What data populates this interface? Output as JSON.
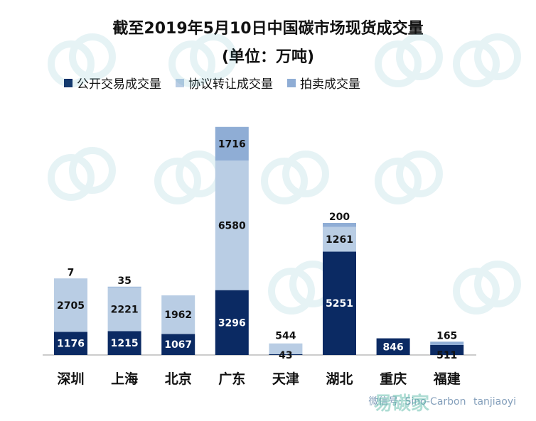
{
  "chart_data": {
    "type": "bar",
    "stacked": true,
    "title": "截至2019年5月10日中国碳市场现货成交量",
    "subtitle": "(单位：万吨)",
    "categories": [
      "深圳",
      "上海",
      "北京",
      "广东",
      "天津",
      "湖北",
      "重庆",
      "福建"
    ],
    "series": [
      {
        "name": "公开交易成交量",
        "color": "#0b2a63",
        "values": [
          1176,
          1215,
          1067,
          3296,
          43,
          5251,
          846,
          511
        ]
      },
      {
        "name": "协议转让成交量",
        "color": "#b9cde4",
        "values": [
          2705,
          2221,
          1962,
          6580,
          544,
          1261,
          0,
          0
        ]
      },
      {
        "name": "拍卖成交量",
        "color": "#8fadd5",
        "values": [
          7,
          35,
          0,
          1716,
          0,
          200,
          0,
          165
        ]
      }
    ],
    "labels": {
      "series0": [
        "1176",
        "1215",
        "1067",
        "3296",
        "43",
        "5251",
        "846",
        "511"
      ],
      "series1": [
        "2705",
        "2221",
        "1962",
        "6580",
        "544",
        "1261",
        "",
        ""
      ],
      "series2": [
        "7",
        "35",
        "",
        "1716",
        "",
        "200",
        "",
        "165"
      ]
    },
    "xlabel": "",
    "ylabel": "",
    "ylim": [
      0,
      11800
    ],
    "legend": "top"
  },
  "footer": {
    "wechat": "微信号: Sino-Carbon",
    "brand": "易碳家",
    "site": "tanjiaoyi"
  }
}
